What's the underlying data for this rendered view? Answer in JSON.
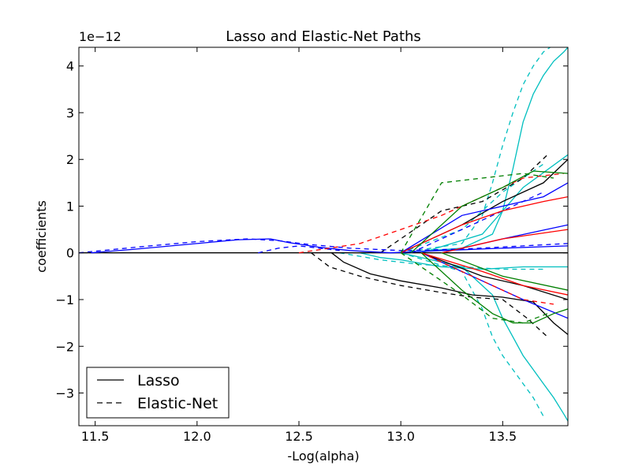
{
  "chart_data": {
    "type": "line",
    "title": "Lasso and Elastic-Net Paths",
    "xlabel": "-Log(alpha)",
    "ylabel": "coefficients",
    "y_offset_label": "1e−12",
    "xlim": [
      11.42,
      13.82
    ],
    "ylim": [
      -3.7,
      4.4
    ],
    "xticks": [
      {
        "value": 11.5,
        "label": "11.5"
      },
      {
        "value": 12.0,
        "label": "12.0"
      },
      {
        "value": 12.5,
        "label": "12.5"
      },
      {
        "value": 13.0,
        "label": "13.0"
      },
      {
        "value": 13.5,
        "label": "13.5"
      }
    ],
    "yticks": [
      {
        "value": -3,
        "label": "−3"
      },
      {
        "value": -2,
        "label": "−2"
      },
      {
        "value": -1,
        "label": "−1"
      },
      {
        "value": 0,
        "label": "0"
      },
      {
        "value": 1,
        "label": "1"
      },
      {
        "value": 2,
        "label": "2"
      },
      {
        "value": 3,
        "label": "3"
      },
      {
        "value": 4,
        "label": "4"
      }
    ],
    "grid": false,
    "legend": {
      "placement": "lower-left",
      "entries": [
        {
          "label": "Lasso",
          "style": "solid",
          "color": "#000000"
        },
        {
          "label": "Elastic-Net",
          "style": "dashed",
          "color": "#000000"
        }
      ]
    },
    "colors": {
      "blue": "#0000ff",
      "green": "#007f00",
      "red": "#ff0000",
      "cyan": "#00bfbf",
      "black": "#000000"
    },
    "series": [
      {
        "method": "Lasso",
        "style": "solid",
        "color": "#00bfbf",
        "x": [
          13.0,
          13.3,
          13.45,
          13.5,
          13.55,
          13.6,
          13.65,
          13.7,
          13.75,
          13.8,
          13.82
        ],
        "y": [
          0,
          0.1,
          0.4,
          0.9,
          1.8,
          2.8,
          3.4,
          3.8,
          4.1,
          4.3,
          4.4
        ]
      },
      {
        "method": "Lasso",
        "style": "solid",
        "color": "#00bfbf",
        "x": [
          13.0,
          13.3,
          13.45,
          13.5,
          13.55,
          13.6,
          13.65,
          13.7,
          13.75,
          13.8,
          13.82
        ],
        "y": [
          0,
          -0.3,
          -0.9,
          -1.4,
          -1.8,
          -2.2,
          -2.5,
          -2.8,
          -3.1,
          -3.45,
          -3.6
        ]
      },
      {
        "method": "Elastic-Net",
        "style": "dashed",
        "color": "#00bfbf",
        "x": [
          13.0,
          13.3,
          13.4,
          13.45,
          13.5,
          13.55,
          13.6,
          13.65,
          13.7,
          13.75
        ],
        "y": [
          0,
          0.2,
          0.8,
          1.5,
          2.3,
          3.0,
          3.6,
          4.0,
          4.3,
          4.45
        ]
      },
      {
        "method": "Elastic-Net",
        "style": "dashed",
        "color": "#00bfbf",
        "x": [
          13.0,
          13.3,
          13.4,
          13.45,
          13.5,
          13.55,
          13.6,
          13.65,
          13.7
        ],
        "y": [
          0,
          -0.4,
          -1.2,
          -1.8,
          -2.2,
          -2.5,
          -2.8,
          -3.1,
          -3.5
        ]
      },
      {
        "method": "Lasso",
        "style": "solid",
        "color": "#00bfbf",
        "x": [
          12.8,
          12.9,
          13.0,
          13.2,
          13.4,
          13.6,
          13.82
        ],
        "y": [
          0,
          -0.1,
          -0.15,
          -0.3,
          -0.35,
          -0.3,
          -0.3
        ]
      },
      {
        "method": "Elastic-Net",
        "style": "dashed",
        "color": "#00bfbf",
        "x": [
          12.7,
          12.9,
          13.1,
          13.3,
          13.5,
          13.7
        ],
        "y": [
          0,
          -0.15,
          -0.25,
          -0.3,
          -0.35,
          -0.35
        ]
      },
      {
        "method": "Lasso",
        "style": "solid",
        "color": "#00bfbf",
        "x": [
          13.1,
          13.4,
          13.6,
          13.82
        ],
        "y": [
          0,
          0.4,
          1.4,
          2.1
        ]
      },
      {
        "method": "Elastic-Net",
        "style": "dashed",
        "color": "#00bfbf",
        "x": [
          13.0,
          13.3,
          13.5,
          13.7
        ],
        "y": [
          0,
          0.5,
          1.3,
          1.9
        ]
      },
      {
        "method": "Lasso",
        "style": "solid",
        "color": "#000000",
        "x": [
          11.42,
          11.6,
          12.0,
          12.6,
          13.82
        ],
        "y": [
          0,
          0,
          0,
          0,
          0
        ]
      },
      {
        "method": "Lasso",
        "style": "solid",
        "color": "#000000",
        "x": [
          12.66,
          12.72,
          12.85,
          13.0,
          13.2,
          13.35,
          13.5,
          13.65,
          13.75,
          13.82
        ],
        "y": [
          0,
          -0.2,
          -0.45,
          -0.6,
          -0.75,
          -0.9,
          -0.95,
          -1.05,
          -1.5,
          -1.75
        ]
      },
      {
        "method": "Elastic-Net",
        "style": "dashed",
        "color": "#000000",
        "x": [
          12.56,
          12.65,
          12.8,
          13.0,
          13.2,
          13.35,
          13.5,
          13.62,
          13.72
        ],
        "y": [
          0,
          -0.3,
          -0.5,
          -0.7,
          -0.85,
          -0.95,
          -1.0,
          -1.4,
          -1.8
        ]
      },
      {
        "method": "Lasso",
        "style": "solid",
        "color": "#000000",
        "x": [
          13.0,
          13.3,
          13.5,
          13.7,
          13.82
        ],
        "y": [
          0,
          0.6,
          1.1,
          1.5,
          2.0
        ]
      },
      {
        "method": "Elastic-Net",
        "style": "dashed",
        "color": "#000000",
        "x": [
          12.9,
          13.2,
          13.4,
          13.6,
          13.72
        ],
        "y": [
          0,
          0.9,
          1.1,
          1.6,
          2.1
        ]
      },
      {
        "method": "Lasso",
        "style": "solid",
        "color": "#000000",
        "x": [
          13.1,
          13.4,
          13.6,
          13.82
        ],
        "y": [
          0,
          -0.5,
          -0.7,
          -1.0
        ]
      },
      {
        "method": "Lasso",
        "style": "solid",
        "color": "#0000ff",
        "x": [
          11.48,
          11.7,
          12.0,
          12.2,
          12.36,
          12.45,
          12.6,
          12.75,
          12.95,
          13.2,
          13.5,
          13.82
        ],
        "y": [
          0,
          0.08,
          0.2,
          0.28,
          0.3,
          0.22,
          0.12,
          0.05,
          0,
          0.05,
          0.1,
          0.15
        ]
      },
      {
        "method": "Elastic-Net",
        "style": "dashed",
        "color": "#0000ff",
        "x": [
          11.42,
          11.7,
          12.0,
          12.25,
          12.4,
          12.55,
          12.75,
          13.0,
          13.3,
          13.6,
          13.82
        ],
        "y": [
          0,
          0.12,
          0.24,
          0.3,
          0.26,
          0.18,
          0.1,
          0.05,
          0.08,
          0.15,
          0.2
        ]
      },
      {
        "method": "Elastic-Net",
        "style": "dashed",
        "color": "#0000ff",
        "x": [
          12.3,
          12.4,
          12.5,
          12.6,
          12.7
        ],
        "y": [
          0,
          0.1,
          0.15,
          0.1,
          0.05
        ]
      },
      {
        "method": "Lasso",
        "style": "solid",
        "color": "#0000ff",
        "x": [
          13.0,
          13.3,
          13.5,
          13.7,
          13.82
        ],
        "y": [
          0,
          0.8,
          1.0,
          1.2,
          1.5
        ]
      },
      {
        "method": "Lasso",
        "style": "solid",
        "color": "#0000ff",
        "x": [
          13.1,
          13.4,
          13.6,
          13.82
        ],
        "y": [
          0,
          -0.6,
          -1.0,
          -1.4
        ]
      },
      {
        "method": "Elastic-Net",
        "style": "dashed",
        "color": "#0000ff",
        "x": [
          13.05,
          13.3,
          13.5,
          13.7
        ],
        "y": [
          0,
          0.5,
          0.9,
          1.3
        ]
      },
      {
        "method": "Lasso",
        "style": "solid",
        "color": "#0000ff",
        "x": [
          13.2,
          13.5,
          13.82
        ],
        "y": [
          0,
          0.3,
          0.6
        ]
      },
      {
        "method": "Lasso",
        "style": "solid",
        "color": "#ff0000",
        "x": [
          13.0,
          13.3,
          13.5,
          13.7,
          13.82
        ],
        "y": [
          0,
          0.6,
          0.9,
          1.1,
          1.2
        ]
      },
      {
        "method": "Elastic-Net",
        "style": "dashed",
        "color": "#ff0000",
        "x": [
          12.5,
          12.8,
          13.0,
          13.2,
          13.4,
          13.6,
          13.8
        ],
        "y": [
          0,
          0.2,
          0.5,
          0.8,
          1.2,
          1.6,
          1.7
        ]
      },
      {
        "method": "Lasso",
        "style": "solid",
        "color": "#ff0000",
        "x": [
          13.1,
          13.4,
          13.6,
          13.82
        ],
        "y": [
          0,
          -0.4,
          -0.7,
          -0.9
        ]
      },
      {
        "method": "Elastic-Net",
        "style": "dashed",
        "color": "#ff0000",
        "x": [
          13.1,
          13.4,
          13.6,
          13.75
        ],
        "y": [
          0,
          -0.6,
          -1.0,
          -1.1
        ]
      },
      {
        "method": "Lasso",
        "style": "solid",
        "color": "#ff0000",
        "x": [
          13.2,
          13.5,
          13.82
        ],
        "y": [
          0,
          0.3,
          0.5
        ]
      },
      {
        "method": "Lasso",
        "style": "solid",
        "color": "#007f00",
        "x": [
          13.1,
          13.3,
          13.45,
          13.55,
          13.65,
          13.75,
          13.82
        ],
        "y": [
          0,
          -0.8,
          -1.3,
          -1.5,
          -1.5,
          -1.3,
          -1.2
        ]
      },
      {
        "method": "Elastic-Net",
        "style": "dashed",
        "color": "#007f00",
        "x": [
          13.0,
          13.3,
          13.45,
          13.6,
          13.72
        ],
        "y": [
          0,
          -0.9,
          -1.4,
          -1.5,
          -1.3
        ]
      },
      {
        "method": "Lasso",
        "style": "solid",
        "color": "#007f00",
        "x": [
          13.05,
          13.3,
          13.5,
          13.65,
          13.82
        ],
        "y": [
          0,
          1.0,
          1.4,
          1.75,
          1.7
        ]
      },
      {
        "method": "Elastic-Net",
        "style": "dashed",
        "color": "#007f00",
        "x": [
          13.0,
          13.2,
          13.4,
          13.6,
          13.75
        ],
        "y": [
          0,
          1.5,
          1.6,
          1.7,
          1.6
        ]
      },
      {
        "method": "Lasso",
        "style": "solid",
        "color": "#007f00",
        "x": [
          13.2,
          13.5,
          13.82
        ],
        "y": [
          0,
          -0.5,
          -0.8
        ]
      }
    ]
  }
}
